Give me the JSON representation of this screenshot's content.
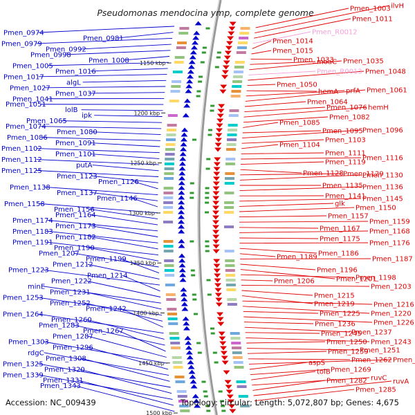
{
  "title": "Pseudomonas mendocina ymp, complete genome",
  "footer": {
    "accession": "Accession: NC_009439",
    "summary": "Topology: circular; Length: 5,072,807 bp; Genes: 4,675"
  },
  "colors": {
    "left_strand": "#0000cc",
    "right_strand": "#e00000",
    "rna": "#f4a0d8",
    "backbone": "#999999",
    "tick": "#339933"
  },
  "kbp_marks": [
    "1150 kbp",
    "1200 kbp",
    "1250 kbp",
    "1300 kbp",
    "1350 kbp",
    "1400 kbp",
    "1450 kbp",
    "1500 kbp"
  ],
  "left_labels": [
    "Pmen_0974",
    "Pmen_0981",
    "Pmen_0979",
    "Pmen_0992",
    "Pmen_0998",
    "Pmen_1008",
    "Pmen_1005",
    "Pmen_1016",
    "Pmen_1017",
    "algL",
    "Pmen_1027",
    "Pmen_1037",
    "Pmen_1041",
    "Pmen_1051",
    "lolB",
    "ipk",
    "Pmen_1065",
    "Pmen_1074",
    "Pmen_1080",
    "Pmen_1086",
    "Pmen_1091",
    "Pmen_1102",
    "Pmen_1101",
    "Pmen_1112",
    "putA",
    "Pmen_1125",
    "Pmen_1123",
    "Pmen_1126",
    "Pmen_1138",
    "Pmen_1137",
    "Pmen_1146",
    "Pmen_1158",
    "Pmen_1156",
    "Pmen_1164",
    "Pmen_1174",
    "Pmen_1173",
    "Pmen_1183",
    "Pmen_1182",
    "Pmen_1191",
    "Pmen_1190",
    "Pmen_1207",
    "Pmen_1199",
    "Pmen_1212",
    "Pmen_1223",
    "Pmen_1214",
    "Pmen_1222",
    "minE",
    "Pmen_1231",
    "Pmen_1253",
    "Pmen_1252",
    "Pmen_1242",
    "Pmen_1264",
    "Pmen_1260",
    "Pmen_1283",
    "Pmen_1267",
    "Pmen_1287",
    "Pmen_1303",
    "Pmen_1296",
    "rdgC",
    "Pmen_1308",
    "Pmen_1325",
    "Pmen_1320",
    "Pmen_1339",
    "Pmen_1331",
    "Pmen_1343"
  ],
  "right_labels": [
    "Pmen_1003",
    "ilvH",
    "Pmen_1011",
    "Pmen_R0012",
    "Pmen_1014",
    "Pmen_1015",
    "Pmen_1033",
    "moaC",
    "Pmen_1035",
    "Pmen_R0013",
    "Pmen_1048",
    "Pmen_1050",
    "hemA",
    "prfA",
    "Pmen_1061",
    "Pmen_1064",
    "Pmen_1076",
    "hemH",
    "Pmen_1082",
    "Pmen_1085",
    "Pmen_1095",
    "Pmen_1096",
    "Pmen_1103",
    "Pmen_1104",
    "Pmen_1111",
    "Pmen_1116",
    "Pmen_1119",
    "Pmen_1128",
    "Pmen_1129",
    "Pmen_1130",
    "Pmen_1135",
    "Pmen_1136",
    "Pmen_1141",
    "Pmen_1145",
    "glk",
    "Pmen_1150",
    "Pmen_1157",
    "Pmen_1159",
    "Pmen_1167",
    "Pmen_1168",
    "Pmen_1175",
    "Pmen_1176",
    "Pmen_1186",
    "Pmen_1189",
    "Pmen_1187",
    "Pmen_1196",
    "Pmen_1201",
    "Pmen_1198",
    "Pmen_1206",
    "Pmen_1203",
    "Pmen_1215",
    "Pmen_1219",
    "Pmen_1216",
    "Pmen_1220",
    "Pmen_1225",
    "Pmen_1226",
    "Pmen_1236",
    "Pmen_1237",
    "Pmen_1245",
    "Pmen_1243",
    "Pmen_1250",
    "Pmen_1251",
    "Pmen_1259",
    "Pmen_1262",
    "Pmen_1255",
    "aspS",
    "Pmen_1269",
    "tolB",
    "ruvC",
    "Pmen_1282",
    "ruvA",
    "Pmen_1285"
  ]
}
